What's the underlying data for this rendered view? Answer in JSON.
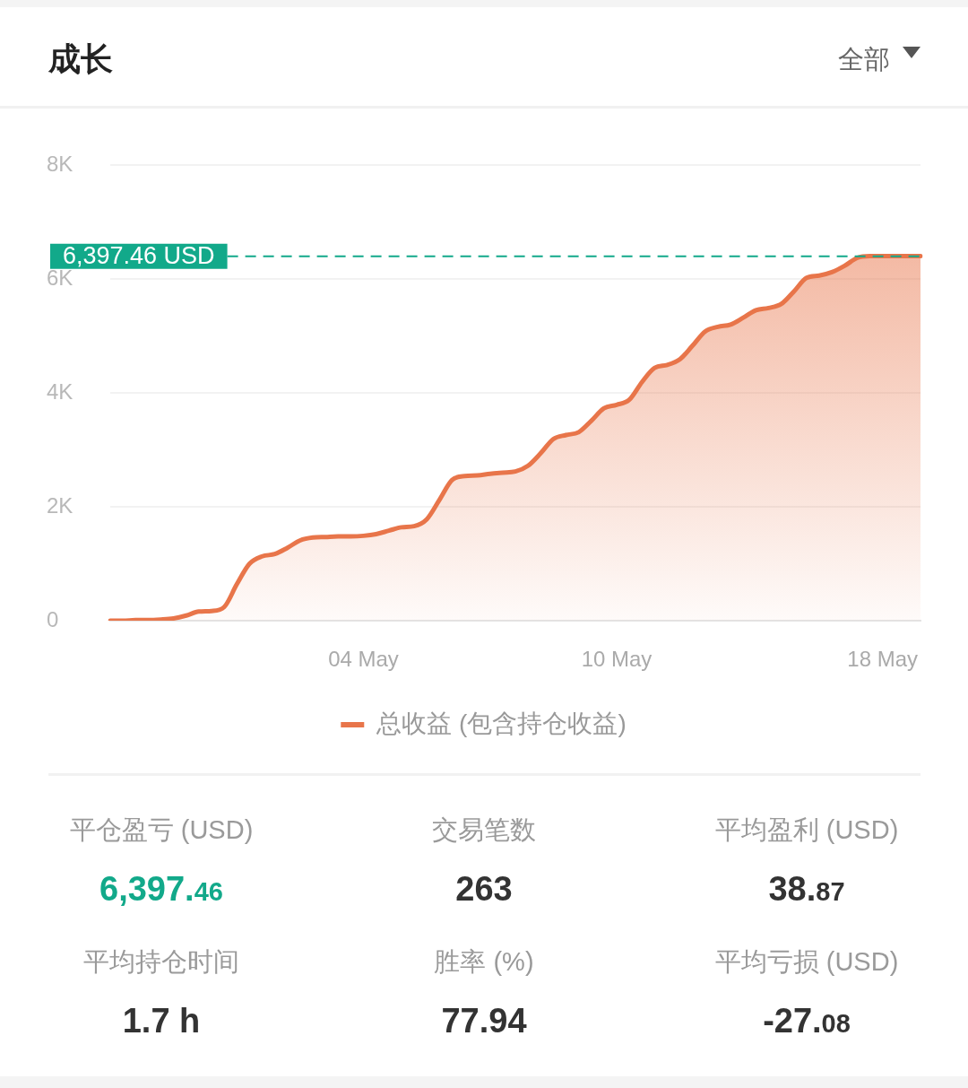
{
  "chart_data": [
    {
      "type": "area",
      "title": "成长",
      "categories": [
        null,
        null,
        null,
        null,
        null,
        null,
        null,
        null,
        null,
        null,
        null,
        null,
        null,
        null,
        null,
        null,
        null,
        null,
        null,
        null,
        "04 May",
        null,
        null,
        null,
        null,
        null,
        null,
        null,
        null,
        null,
        null,
        null,
        null,
        null,
        null,
        null,
        null,
        null,
        null,
        null,
        "10 May",
        null,
        null,
        null,
        null,
        null,
        null,
        null,
        null,
        null,
        null,
        null,
        null,
        null,
        null,
        null,
        null,
        null,
        null,
        null,
        null,
        "18 May",
        null,
        null,
        null
      ],
      "series": [
        {
          "name": "总收益 (包含持仓收益)",
          "color": "#e8754a",
          "values": [
            0,
            0,
            10,
            10,
            20,
            40,
            90,
            160,
            170,
            240,
            640,
            1000,
            1130,
            1170,
            1280,
            1410,
            1460,
            1470,
            1480,
            1480,
            1490,
            1520,
            1580,
            1640,
            1660,
            1780,
            2120,
            2470,
            2540,
            2550,
            2580,
            2600,
            2620,
            2720,
            2940,
            3190,
            3260,
            3310,
            3510,
            3730,
            3790,
            3880,
            4190,
            4440,
            4490,
            4590,
            4830,
            5080,
            5160,
            5200,
            5320,
            5450,
            5490,
            5560,
            5780,
            6020,
            6060,
            6120,
            6230,
            6370,
            6400,
            6400,
            6400,
            6400,
            6400
          ]
        }
      ],
      "ylim": [
        0,
        8000
      ],
      "yticks": [
        0,
        {
          "value": 2000,
          "label": "2K"
        },
        {
          "value": 4000,
          "label": "4K"
        },
        {
          "value": 6000,
          "label": "6K"
        },
        {
          "value": 8000,
          "label": "8K"
        }
      ],
      "grid": "y",
      "legend": "bottom",
      "ref_lines": [
        {
          "axis": "y",
          "value": 6397.46,
          "label": "6,397.46 USD",
          "color": "#12a98a",
          "line_style": "dashed"
        }
      ],
      "annotations": [
        "全部"
      ]
    },
    {
      "type": "other",
      "annotations": [
        "平仓盈亏 (USD)",
        "6,397.46",
        "交易笔数",
        "263",
        "平均盈利 (USD)",
        "38.87",
        "平均持仓时间",
        "1.7 h",
        "胜率 (%)",
        "77.94",
        "平均亏损 (USD)",
        "-27.08"
      ]
    }
  ]
}
